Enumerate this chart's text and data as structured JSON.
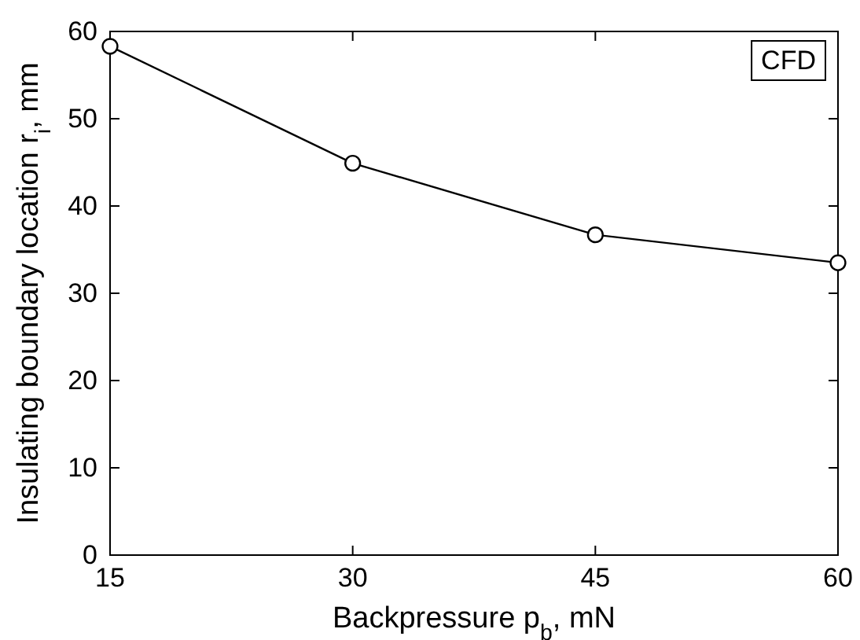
{
  "chart_data": {
    "type": "line",
    "xlabel": "Backpressure p$_{b}$, mN",
    "ylabel": "Insulating boundary location r$_{i}$, mm",
    "x": [
      15,
      30,
      45,
      60
    ],
    "series": [
      {
        "color": "#000000",
        "values": [
          58.3,
          44.9,
          36.7,
          33.5
        ]
      }
    ],
    "xlim": [
      15,
      60
    ],
    "xticks": [
      15,
      30,
      45,
      60
    ],
    "ylim": [
      0,
      60
    ],
    "yticks": [
      0,
      10,
      20,
      30,
      40,
      50,
      60
    ],
    "marker": "circle",
    "line_style": "solid",
    "grid": false,
    "annotations": [
      "CFD"
    ]
  }
}
